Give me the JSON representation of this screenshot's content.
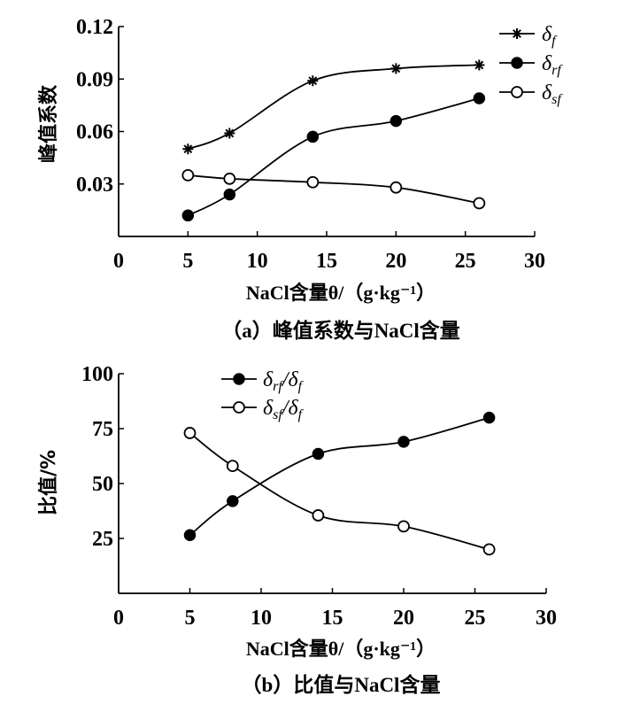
{
  "chart_data": [
    {
      "type": "line",
      "title": "",
      "caption": "（a）峰值系数与NaCl含量",
      "xlabel": "NaCl含量θ/（g·kg⁻¹）",
      "ylabel": "峰值系数",
      "xlim": [
        0,
        30
      ],
      "ylim": [
        0,
        0.12
      ],
      "xticks": [
        "0",
        "5",
        "10",
        "15",
        "20",
        "25",
        "30"
      ],
      "yticks": [
        "0.03",
        "0.06",
        "0.09",
        "0.12"
      ],
      "x": [
        5,
        8,
        14,
        20,
        26
      ],
      "series": [
        {
          "name": "δf",
          "base": "δ",
          "sub": "f",
          "marker": "star",
          "values": [
            0.05,
            0.059,
            0.089,
            0.096,
            0.098
          ]
        },
        {
          "name": "δrf",
          "base": "δ",
          "sub": "rf",
          "marker": "filled-circle",
          "values": [
            0.012,
            0.024,
            0.057,
            0.066,
            0.079
          ]
        },
        {
          "name": "δsf",
          "base": "δ",
          "sub": "sf",
          "marker": "open-circle",
          "values": [
            0.035,
            0.033,
            0.031,
            0.028,
            0.019
          ]
        }
      ],
      "legend_position": "top-right"
    },
    {
      "type": "line",
      "title": "",
      "caption": "（b）比值与NaCl含量",
      "xlabel": "NaCl含量θ/（g·kg⁻¹）",
      "ylabel": "比值/%",
      "xlim": [
        0,
        30
      ],
      "ylim": [
        0,
        100
      ],
      "xticks": [
        "0",
        "5",
        "10",
        "15",
        "20",
        "25",
        "30"
      ],
      "yticks": [
        "25",
        "50",
        "75",
        "100"
      ],
      "x": [
        5,
        8,
        14,
        20,
        26
      ],
      "series": [
        {
          "name": "δrf/δf",
          "base": "δ",
          "sub": "rf",
          "base2": "/δ",
          "sub2": "f",
          "marker": "filled-circle",
          "values": [
            26.5,
            42,
            63.5,
            69,
            80
          ]
        },
        {
          "name": "δsf/δf",
          "base": "δ",
          "sub": "sf",
          "base2": "/δ",
          "sub2": "f",
          "marker": "open-circle",
          "values": [
            73,
            58,
            35.5,
            30.5,
            20
          ]
        }
      ],
      "legend_position": "top-left"
    }
  ]
}
